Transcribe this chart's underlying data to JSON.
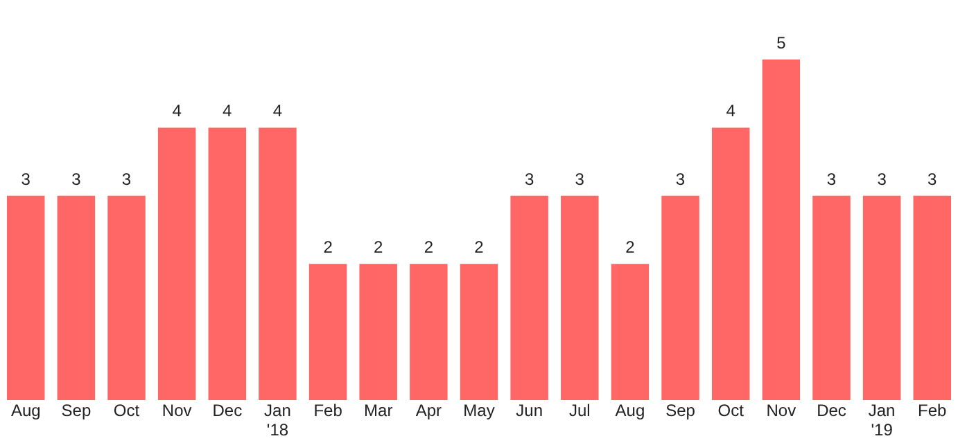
{
  "chart_data": {
    "type": "bar",
    "categories": [
      "Aug",
      "Sep",
      "Oct",
      "Nov",
      "Dec",
      "Jan '18",
      "Feb",
      "Mar",
      "Apr",
      "May",
      "Jun",
      "Jul",
      "Aug",
      "Sep",
      "Oct",
      "Nov",
      "Dec",
      "Jan '19",
      "Feb"
    ],
    "values": [
      3,
      3,
      3,
      4,
      4,
      4,
      2,
      2,
      2,
      2,
      3,
      3,
      2,
      3,
      4,
      5,
      3,
      3,
      3
    ],
    "color": "#ff6666",
    "data_labels": true,
    "grid": false
  }
}
